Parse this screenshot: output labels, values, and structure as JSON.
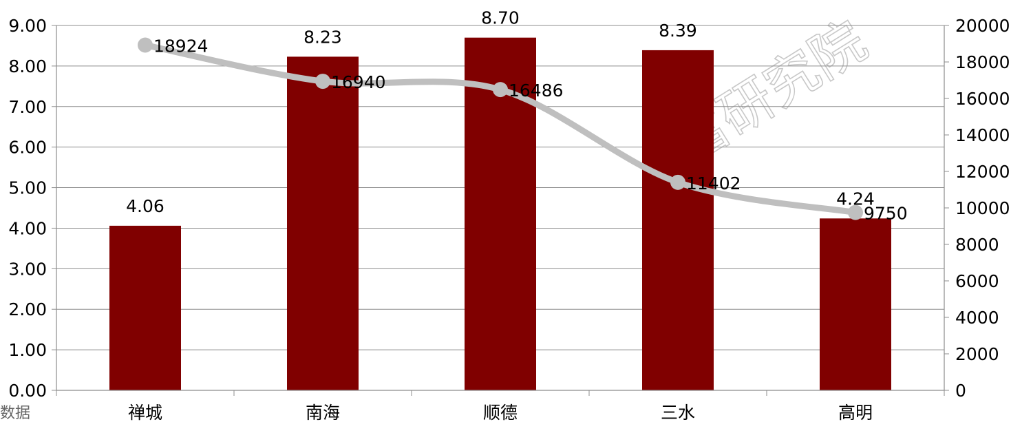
{
  "chart_data": {
    "type": "bar+line",
    "categories": [
      "禅城",
      "南海",
      "顺德",
      "三水",
      "高明"
    ],
    "series": [
      {
        "type": "bar",
        "axis": "left",
        "color": "#800000",
        "values": [
          4.06,
          8.23,
          8.7,
          8.39,
          4.24
        ],
        "labels": [
          "4.06",
          "8.23",
          "8.70",
          "8.39",
          "4.24"
        ]
      },
      {
        "type": "line",
        "axis": "right",
        "smooth": true,
        "color": "#bfbfbf",
        "values": [
          18924,
          16940,
          16486,
          11402,
          9750
        ],
        "labels": [
          "18924",
          "16940",
          "16486",
          "11402",
          "9750"
        ]
      }
    ],
    "y_left": {
      "ylim": [
        0,
        9
      ],
      "ticks": [
        "0.00",
        "1.00",
        "2.00",
        "3.00",
        "4.00",
        "5.00",
        "6.00",
        "7.00",
        "8.00",
        "9.00"
      ]
    },
    "y_right": {
      "ylim": [
        0,
        20000
      ],
      "ticks": [
        "0",
        "2000",
        "4000",
        "6000",
        "8000",
        "10000",
        "12000",
        "14000",
        "16000",
        "18000",
        "20000"
      ]
    },
    "grid": true,
    "legend": "none"
  },
  "watermark": "富研究院",
  "footer_fragment": "数据"
}
